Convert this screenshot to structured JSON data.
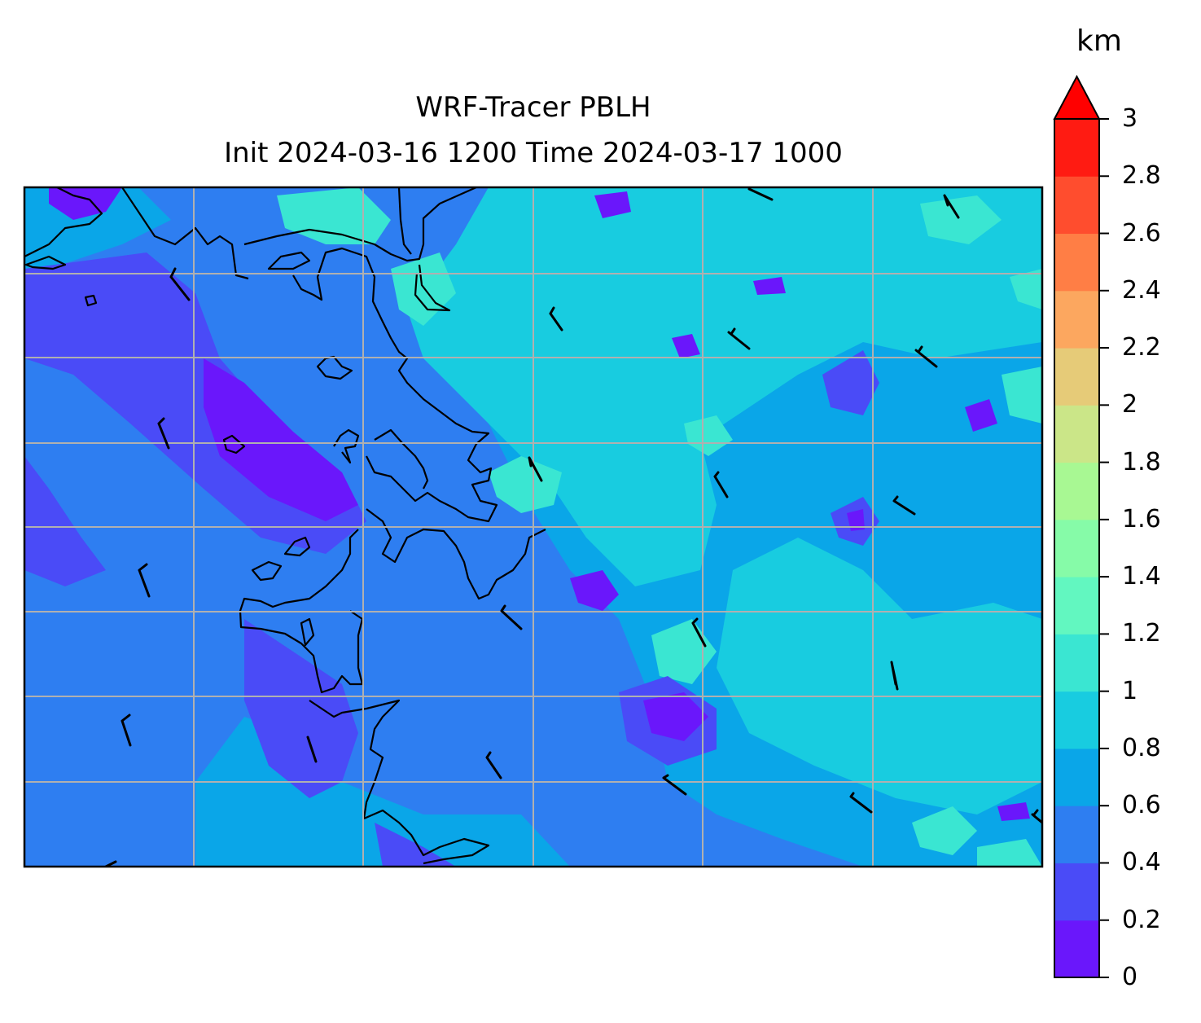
{
  "title_line1": "WRF-Tracer PBLH",
  "title_line2": "Init 2024-03-16 1200 Time 2024-03-17 1000",
  "colorbar": {
    "unit": "km",
    "min": 0,
    "max": 3,
    "extend": "max",
    "extend_color": "#ff0000",
    "tick_labels": [
      "0",
      "0.2",
      "0.4",
      "0.6",
      "0.8",
      "1",
      "1.2",
      "1.4",
      "1.6",
      "1.8",
      "2",
      "2.2",
      "2.4",
      "2.6",
      "2.8",
      "3"
    ],
    "levels": [
      {
        "from": 0.0,
        "to": 0.2,
        "color": "#6a17fb"
      },
      {
        "from": 0.2,
        "to": 0.4,
        "color": "#4a4bf7"
      },
      {
        "from": 0.4,
        "to": 0.6,
        "color": "#2e7ef1"
      },
      {
        "from": 0.6,
        "to": 0.8,
        "color": "#0aa6e8"
      },
      {
        "from": 0.8,
        "to": 1.0,
        "color": "#18cce0"
      },
      {
        "from": 1.0,
        "to": 1.2,
        "color": "#3ae6d2"
      },
      {
        "from": 1.2,
        "to": 1.4,
        "color": "#62f7c0"
      },
      {
        "from": 1.4,
        "to": 1.6,
        "color": "#86fba8"
      },
      {
        "from": 1.6,
        "to": 1.8,
        "color": "#a8f893"
      },
      {
        "from": 1.8,
        "to": 2.0,
        "color": "#cbe688"
      },
      {
        "from": 2.0,
        "to": 2.2,
        "color": "#e6cb78"
      },
      {
        "from": 2.2,
        "to": 2.4,
        "color": "#fca75f"
      },
      {
        "from": 2.4,
        "to": 2.6,
        "color": "#ff7e45"
      },
      {
        "from": 2.6,
        "to": 2.8,
        "color": "#ff4d2e"
      },
      {
        "from": 2.8,
        "to": 3.0,
        "color": "#ff1b12"
      }
    ]
  },
  "map": {
    "gridlines": true,
    "gridline_color": "#b0b0b0",
    "coastline_color": "#000000",
    "wind_barb_count": 26
  }
}
